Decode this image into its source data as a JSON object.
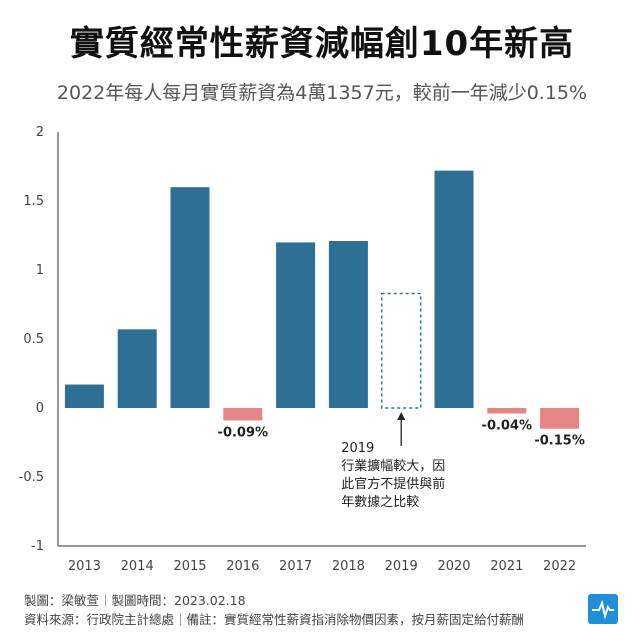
{
  "title": "實質經常性薪資減幅創10年新高",
  "subtitle": "2022年每人每月實質薪資為4萬1357元，較前一年減少0.15%",
  "footer": {
    "line1": "製圖：梁敏萱｜製圖時間：2023.02.18",
    "line2": "資料來源：行政院主計總處｜備註：實質經常性薪資指消除物價因素，按月薪固定給付薪酬"
  },
  "logo": {
    "icon": "pulse-line-icon",
    "color": "#1f8fd6"
  },
  "colors": {
    "positive": "#2e6f96",
    "negative": "#e58585",
    "placeholder": "#2a7a86"
  },
  "chart_data": {
    "type": "bar",
    "categories": [
      "2013",
      "2014",
      "2015",
      "2016",
      "2017",
      "2018",
      "2019",
      "2020",
      "2021",
      "2022"
    ],
    "values": [
      0.17,
      0.57,
      1.6,
      -0.09,
      1.2,
      1.21,
      null,
      1.72,
      -0.04,
      -0.15
    ],
    "data_labels": [
      "",
      "",
      "",
      "-0.09%",
      "",
      "",
      "",
      "",
      "-0.04%",
      "-0.15%"
    ],
    "ylim": [
      -1,
      2
    ],
    "yticks": [
      "2",
      "1.5",
      "1",
      "0.5",
      "0",
      "-0.5",
      "-1"
    ],
    "ytick_values": [
      2,
      1.5,
      1,
      0.5,
      0,
      -0.5,
      -1
    ],
    "missing_category": "2019",
    "placeholder_value": 0.83,
    "annotation": {
      "category": "2019",
      "lines": [
        "2019",
        "行業擴幅較大，因",
        "此官方不提供與前",
        "年數據之比較"
      ]
    },
    "grid": false
  }
}
